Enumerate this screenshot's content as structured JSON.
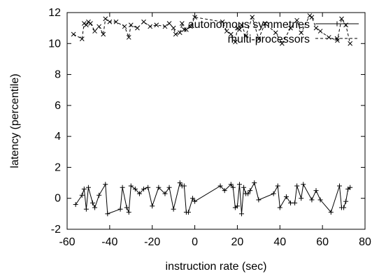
{
  "chart_data": {
    "type": "line",
    "xlabel": "instruction rate (sec)",
    "ylabel": "latency (percentile)",
    "xlim": [
      -60,
      80
    ],
    "ylim": [
      -2,
      12
    ],
    "xticks": [
      -60,
      -40,
      -20,
      0,
      20,
      40,
      60,
      80
    ],
    "yticks": [
      -2,
      0,
      2,
      4,
      6,
      8,
      10,
      12
    ],
    "legend_position": "top-right",
    "series": [
      {
        "name": "autonomous symmetries",
        "line_style": "solid",
        "marker": "+",
        "x": [
          -56,
          -53,
          -52,
          -51,
          -50,
          -48,
          -47,
          -45,
          -42,
          -41,
          -35,
          -34,
          -32,
          -31,
          -30,
          -28,
          -26,
          -24,
          -22,
          -20,
          -17,
          -14,
          -12,
          -10,
          -7,
          -6,
          -5,
          -4,
          -3,
          -1,
          0,
          12,
          14,
          17,
          18,
          19,
          20,
          21,
          22,
          23,
          24,
          25,
          26,
          28,
          30,
          37,
          39,
          40,
          43,
          45,
          47,
          48,
          50,
          51,
          55,
          57,
          59,
          64,
          68,
          69,
          70,
          71,
          72,
          73
        ],
        "y": [
          -0.4,
          0.2,
          0.6,
          -0.7,
          0.7,
          -0.3,
          -0.6,
          0.2,
          0.9,
          -1.0,
          -0.7,
          0.7,
          -0.6,
          -0.9,
          0.8,
          0.6,
          0.3,
          0.6,
          0.7,
          -0.5,
          0.7,
          0.3,
          0.7,
          -0.7,
          1.0,
          0.8,
          0.8,
          -0.9,
          -0.9,
          0.0,
          -0.2,
          0.8,
          0.5,
          0.9,
          0.7,
          -0.6,
          -0.5,
          0.9,
          -1.0,
          0.7,
          0.3,
          0.3,
          0.5,
          1.0,
          -0.1,
          0.3,
          0.8,
          -0.6,
          0.1,
          -0.3,
          -0.3,
          0.8,
          0.0,
          0.9,
          -0.1,
          0.5,
          -0.1,
          -0.9,
          0.8,
          -0.6,
          -0.6,
          -0.2,
          0.6,
          0.7
        ]
      },
      {
        "name": "multi-processors",
        "line_style": "dashed",
        "marker": "x",
        "x": [
          -57,
          -53,
          -52,
          -51,
          -50,
          -49,
          -47,
          -45,
          -43,
          -42,
          -40,
          -37,
          -33,
          -31,
          -30,
          -27,
          -24,
          -21,
          -18,
          -14,
          -12,
          -10,
          -9,
          -7,
          -6,
          -5,
          -4,
          -2,
          0,
          13,
          15,
          17,
          19,
          20,
          21,
          22,
          24,
          27,
          30,
          33,
          38,
          41,
          45,
          48,
          50,
          54,
          55,
          57,
          59,
          63,
          67,
          69,
          71,
          73
        ],
        "y": [
          10.6,
          10.3,
          11.3,
          11.2,
          11.4,
          11.3,
          10.8,
          11.1,
          10.6,
          11.6,
          11.4,
          11.4,
          11.1,
          10.4,
          11.2,
          11.0,
          11.4,
          11.1,
          11.2,
          11.1,
          11.3,
          11.0,
          10.6,
          10.7,
          11.3,
          10.9,
          10.9,
          11.1,
          11.7,
          11.4,
          10.8,
          10.6,
          10.1,
          11.0,
          10.9,
          11.2,
          10.5,
          11.7,
          10.3,
          11.3,
          10.7,
          10.0,
          11.0,
          11.5,
          10.7,
          11.8,
          11.7,
          11.0,
          10.8,
          10.4,
          10.2,
          11.6,
          11.2,
          10.0
        ]
      }
    ]
  }
}
